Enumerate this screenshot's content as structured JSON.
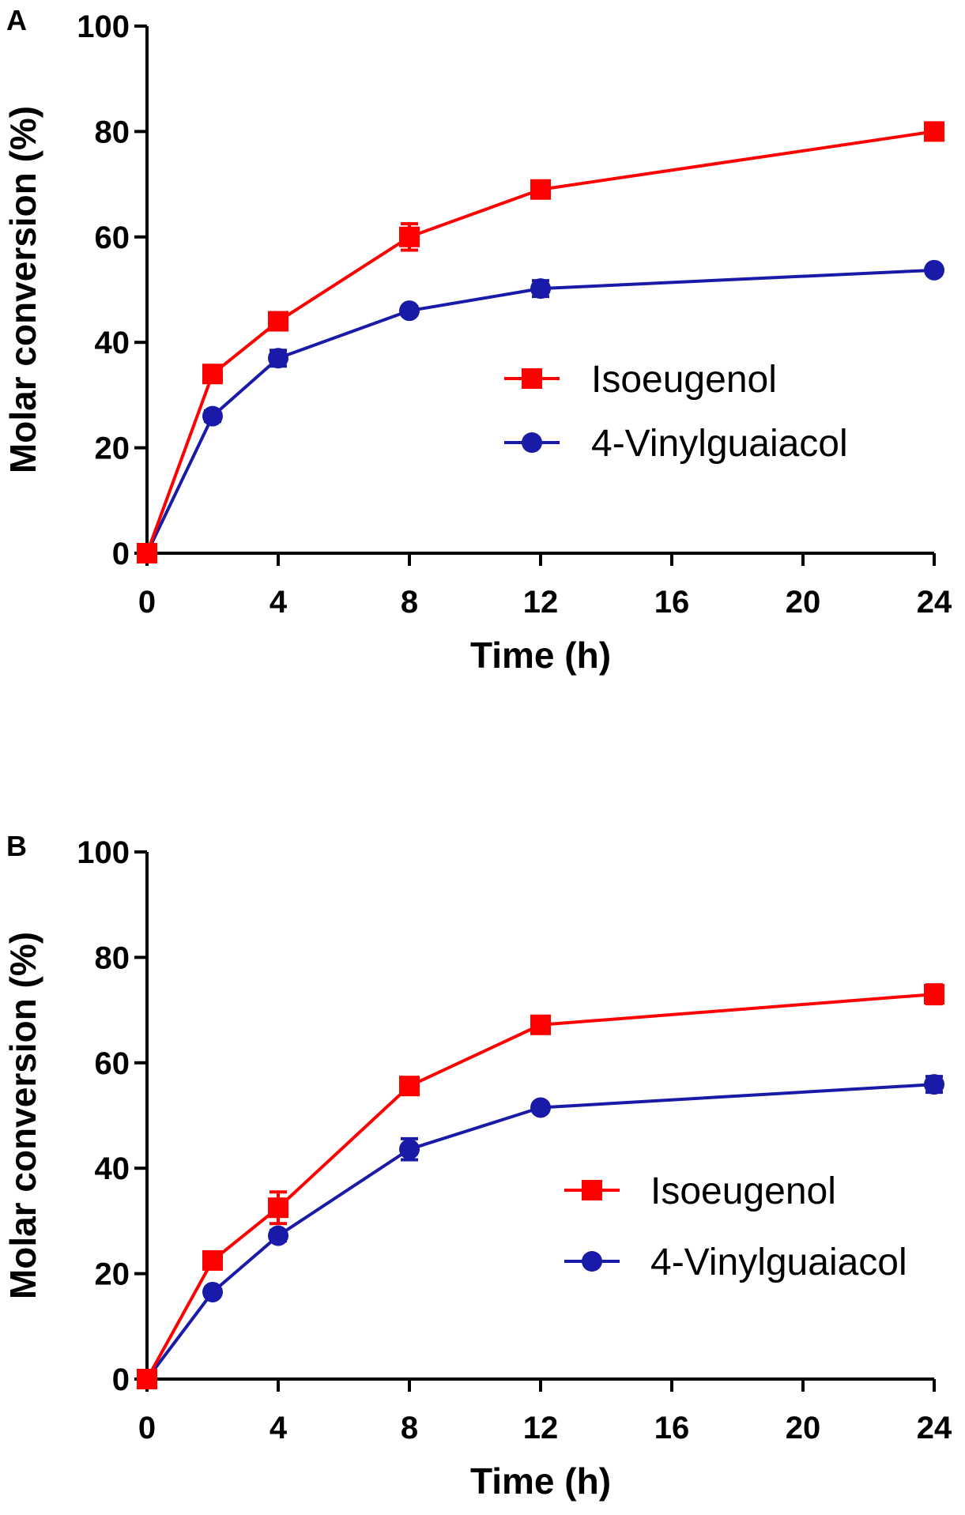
{
  "chart_data": [
    {
      "panel": "A",
      "type": "line",
      "xlabel": "Time (h)",
      "ylabel": "Molar conversion (%)",
      "xlim": [
        0,
        24
      ],
      "ylim": [
        0,
        100
      ],
      "xticks": [
        "0",
        "4",
        "8",
        "12",
        "16",
        "20",
        "24"
      ],
      "yticks": [
        "0",
        "20",
        "40",
        "60",
        "80",
        "100"
      ],
      "x": [
        0,
        2,
        4,
        8,
        12,
        24
      ],
      "grid": false,
      "legend": "center-right",
      "series": [
        {
          "name": "Isoeugenol",
          "color": "#ff0000",
          "marker": "square",
          "values": [
            0,
            34,
            44,
            60,
            69,
            80
          ],
          "errors": [
            0,
            1,
            1,
            2.5,
            1,
            0.8
          ]
        },
        {
          "name": "4-Vinylguaiacol",
          "color": "#1a1aa8",
          "marker": "circle",
          "values": [
            0,
            26,
            37,
            46,
            50.2,
            53.7
          ],
          "errors": [
            0,
            1,
            1.5,
            0.8,
            1.5,
            0.8
          ]
        }
      ]
    },
    {
      "panel": "B",
      "type": "line",
      "xlabel": "Time (h)",
      "ylabel": "Molar conversion (%)",
      "xlim": [
        0,
        24
      ],
      "ylim": [
        0,
        100
      ],
      "xticks": [
        "0",
        "4",
        "8",
        "12",
        "16",
        "20",
        "24"
      ],
      "yticks": [
        "0",
        "20",
        "40",
        "60",
        "80",
        "100"
      ],
      "x": [
        0,
        2,
        4,
        8,
        12,
        24
      ],
      "grid": false,
      "legend": "center-right",
      "series": [
        {
          "name": "Isoeugenol",
          "color": "#ff0000",
          "marker": "square",
          "values": [
            0,
            22.5,
            32.5,
            55.6,
            67.2,
            73
          ],
          "errors": [
            0,
            1.5,
            3,
            0.8,
            0.8,
            1.8
          ]
        },
        {
          "name": "4-Vinylguaiacol",
          "color": "#1a1aa8",
          "marker": "circle",
          "values": [
            0,
            16.5,
            27.2,
            43.6,
            51.5,
            55.9
          ],
          "errors": [
            0,
            0.8,
            1,
            2,
            0.8,
            1.5
          ]
        }
      ]
    }
  ]
}
